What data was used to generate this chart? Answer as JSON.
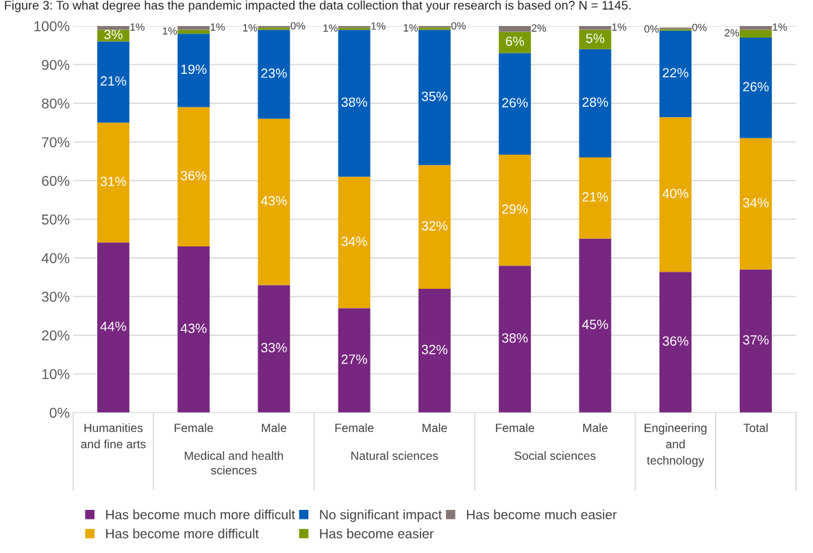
{
  "chart_data": {
    "type": "bar",
    "stacked": true,
    "title": "Figure 3: To what degree has the pandemic impacted the data collection that your research is based on? N = 1145.",
    "categories": [
      "Humanities and fine arts",
      "Female",
      "Male",
      "Female",
      "Male",
      "Female",
      "Male",
      "Engineering and technology",
      "Total"
    ],
    "annotations": [
      "Medical and health sciences",
      "Natural sciences",
      "Social sciences"
    ],
    "series": [
      {
        "name": "Has become much more difficult",
        "color": "#77277f",
        "values": [
          44,
          43,
          33,
          27,
          32,
          38,
          45,
          36.4,
          37
        ],
        "value_labels": [
          "44%",
          "43%",
          "33%",
          "27%",
          "32%",
          "38%",
          "45%",
          "36%",
          "37%"
        ]
      },
      {
        "name": "Has become more difficult",
        "color": "#e8a900",
        "values": [
          31,
          36,
          43,
          34,
          32,
          28.7,
          21,
          40,
          34
        ],
        "value_labels": [
          "31%",
          "36%",
          "43%",
          "34%",
          "32%",
          "29%",
          "21%",
          "40%",
          "34%"
        ]
      },
      {
        "name": "No significant impact",
        "color": "#005eb8",
        "values": [
          21,
          19,
          23,
          38,
          35,
          26.3,
          28,
          22.4,
          26
        ],
        "value_labels": [
          "21%",
          "19%",
          "23%",
          "38%",
          "35%",
          "26%",
          "28%",
          "22%",
          "26%"
        ]
      },
      {
        "name": "Has become easier",
        "color": "#7a9a01",
        "values": [
          3,
          1,
          0.6,
          0.5,
          0.6,
          5.5,
          5,
          0.4,
          2
        ],
        "value_labels": [
          "3%",
          "1%",
          "1%",
          "1%",
          "1%",
          "6%",
          "5%",
          "0%",
          "2%"
        ]
      },
      {
        "name": "Has become much easier",
        "color": "#857874",
        "values": [
          1,
          1,
          0.4,
          0.5,
          0.4,
          1.5,
          1,
          0.4,
          1
        ],
        "value_labels": [
          "1%",
          "1%",
          "0%",
          "1%",
          "0%",
          "2%",
          "1%",
          "0%",
          "1%"
        ]
      }
    ],
    "ylim": [
      0,
      100
    ],
    "yticks": [
      {
        "value": 0,
        "label": "0%"
      },
      {
        "value": 10,
        "label": "10%"
      },
      {
        "value": 20,
        "label": "20%"
      },
      {
        "value": 30,
        "label": "30%"
      },
      {
        "value": 40,
        "label": "40%"
      },
      {
        "value": 50,
        "label": "50%"
      },
      {
        "value": 60,
        "label": "60%"
      },
      {
        "value": 70,
        "label": "70%"
      },
      {
        "value": 80,
        "label": "80%"
      },
      {
        "value": 90,
        "label": "90%"
      },
      {
        "value": 100,
        "label": "100%"
      }
    ],
    "grid": "y",
    "legend": "bottom"
  }
}
